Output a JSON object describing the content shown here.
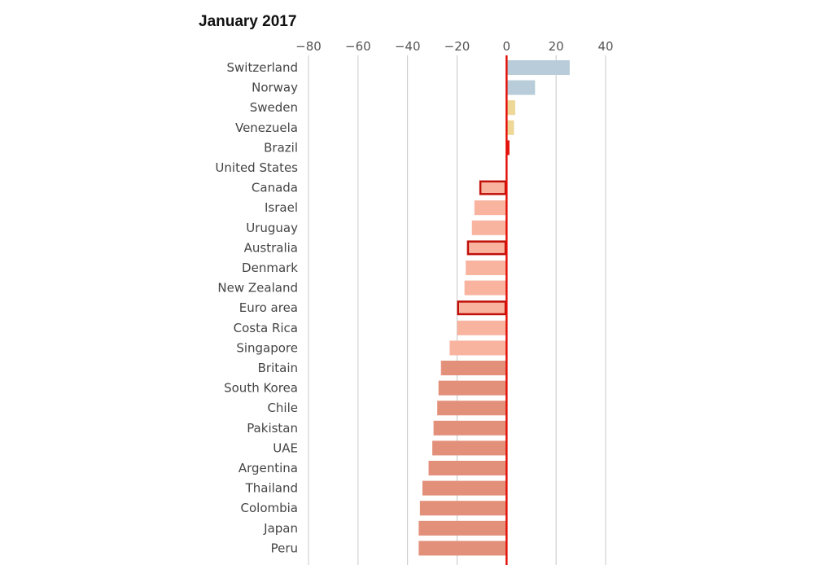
{
  "chart_data": {
    "type": "bar",
    "orientation": "horizontal",
    "title": "January 2017",
    "xlim": [
      -80,
      40
    ],
    "xticks": [
      "-80",
      "-60",
      "-40",
      "-20",
      "0",
      "20",
      "40"
    ],
    "xtick_values": [
      -80,
      -60,
      -40,
      -20,
      0,
      20,
      40
    ],
    "grid": true,
    "categories": [
      "Switzerland",
      "Norway",
      "Sweden",
      "Venezuela",
      "Brazil",
      "United States",
      "Canada",
      "Israel",
      "Uruguay",
      "Australia",
      "Denmark",
      "New Zealand",
      "Euro area",
      "Costa Rica",
      "Singapore",
      "Britain",
      "South Korea",
      "Chile",
      "Pakistan",
      "UAE",
      "Argentina",
      "Thailand",
      "Colombia",
      "Japan",
      "Peru"
    ],
    "values": [
      25.5,
      11.5,
      3.5,
      3,
      1,
      0,
      -11,
      -13,
      -14,
      -16,
      -16.5,
      -17,
      -20,
      -20,
      -23,
      -26.5,
      -27.5,
      -28,
      -29.5,
      -30,
      -31.5,
      -34,
      -35,
      -35.5,
      -35.5
    ],
    "highlighted": [
      "Brazil",
      "Canada",
      "Australia",
      "Euro area"
    ],
    "colors": {
      "overvalued_strong": "#b8cdd9",
      "overvalued_mild": "#eed898",
      "reference": "#e3120b",
      "undervalued_mild": "#f9b4a0",
      "undervalued_strong": "#e3907b",
      "highlight_outline": "#c0100a",
      "grid": "#c8c8c8"
    },
    "bar_colors": [
      "#b8cdd9",
      "#b8cdd9",
      "#eed898",
      "#eed898",
      "#e3120b",
      "#e3120b",
      "#f9b4a0",
      "#f9b4a0",
      "#f9b4a0",
      "#f9b4a0",
      "#f9b4a0",
      "#f9b4a0",
      "#f9b4a0",
      "#f9b4a0",
      "#f9b4a0",
      "#e3907b",
      "#e3907b",
      "#e3907b",
      "#e3907b",
      "#e3907b",
      "#e3907b",
      "#e3907b",
      "#e3907b",
      "#e3907b",
      "#e3907b"
    ]
  }
}
